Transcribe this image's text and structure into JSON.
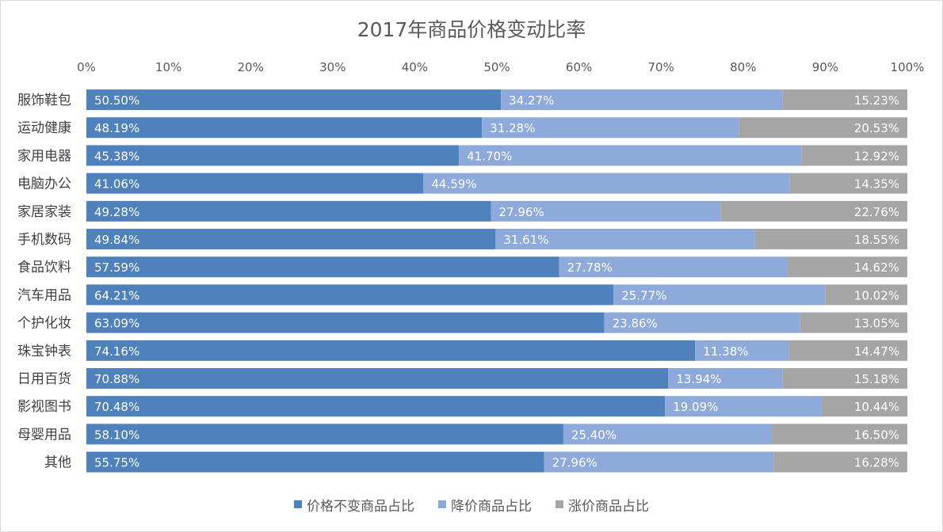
{
  "chart_data": {
    "type": "bar",
    "orientation": "horizontal",
    "stacked": "percent",
    "title": "2017年商品价格变动比率",
    "categories": [
      "服饰鞋包",
      "运动健康",
      "家用电器",
      "电脑办公",
      "家居家装",
      "手机数码",
      "食品饮料",
      "汽车用品",
      "个护化妆",
      "珠宝钟表",
      "日用百货",
      "影视图书",
      "母婴用品",
      "其他"
    ],
    "series": [
      {
        "name": "价格不变商品占比",
        "color": "#4f81bd",
        "values": [
          50.5,
          48.19,
          45.38,
          41.06,
          49.28,
          49.84,
          57.59,
          64.21,
          63.09,
          74.16,
          70.88,
          70.48,
          58.1,
          55.75
        ]
      },
      {
        "name": "降价商品占比",
        "color": "#8eaadb",
        "values": [
          34.27,
          31.28,
          41.7,
          44.59,
          27.96,
          31.61,
          27.78,
          25.77,
          23.86,
          11.38,
          13.94,
          19.09,
          25.4,
          27.96
        ]
      },
      {
        "name": "涨价商品占比",
        "color": "#a5a5a5",
        "values": [
          15.23,
          20.53,
          12.92,
          14.35,
          22.76,
          18.55,
          14.62,
          10.02,
          13.05,
          14.47,
          15.18,
          10.44,
          16.5,
          16.28
        ]
      }
    ],
    "x_axis": {
      "ticks": [
        "0%",
        "10%",
        "20%",
        "30%",
        "40%",
        "50%",
        "60%",
        "70%",
        "80%",
        "90%",
        "100%"
      ],
      "position": "top",
      "range": [
        0,
        100
      ]
    },
    "legend": {
      "position": "bottom"
    },
    "grid": false
  }
}
